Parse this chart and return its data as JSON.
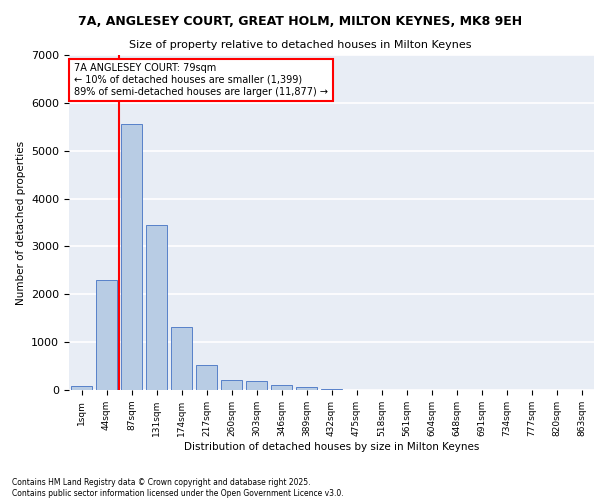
{
  "title1": "7A, ANGLESEY COURT, GREAT HOLM, MILTON KEYNES, MK8 9EH",
  "title2": "Size of property relative to detached houses in Milton Keynes",
  "xlabel": "Distribution of detached houses by size in Milton Keynes",
  "ylabel": "Number of detached properties",
  "bar_labels": [
    "1sqm",
    "44sqm",
    "87sqm",
    "131sqm",
    "174sqm",
    "217sqm",
    "260sqm",
    "303sqm",
    "346sqm",
    "389sqm",
    "432sqm",
    "475sqm",
    "518sqm",
    "561sqm",
    "604sqm",
    "648sqm",
    "691sqm",
    "734sqm",
    "777sqm",
    "820sqm",
    "863sqm"
  ],
  "bar_values": [
    75,
    2300,
    5560,
    3450,
    1320,
    520,
    215,
    185,
    95,
    55,
    30,
    0,
    0,
    0,
    0,
    0,
    0,
    0,
    0,
    0,
    0
  ],
  "bar_color": "#b8cce4",
  "bar_edge_color": "#4472c4",
  "vline_color": "red",
  "vline_x": 1.5,
  "annotation_title": "7A ANGLESEY COURT: 79sqm",
  "annotation_line1": "← 10% of detached houses are smaller (1,399)",
  "annotation_line2": "89% of semi-detached houses are larger (11,877) →",
  "ylim": [
    0,
    7000
  ],
  "yticks": [
    0,
    1000,
    2000,
    3000,
    4000,
    5000,
    6000,
    7000
  ],
  "background_color": "#e8edf5",
  "grid_color": "#ffffff",
  "footer1": "Contains HM Land Registry data © Crown copyright and database right 2025.",
  "footer2": "Contains public sector information licensed under the Open Government Licence v3.0."
}
